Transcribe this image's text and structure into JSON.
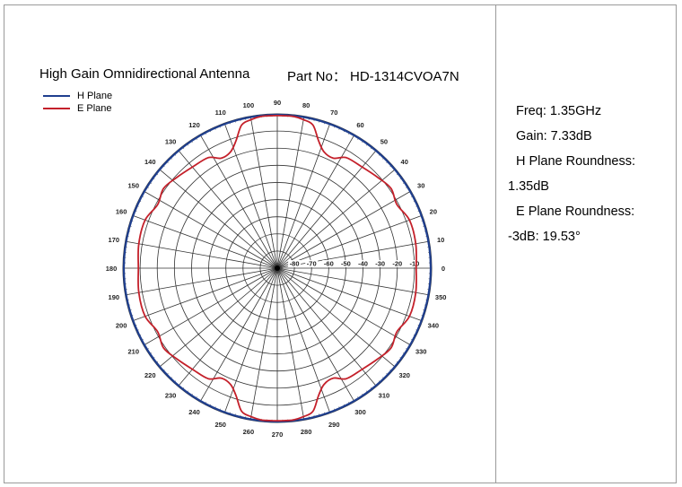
{
  "header": {
    "product": "High Gain Omnidirectional Antenna",
    "part_no": "Part No： HD-1314CVOA7N"
  },
  "specs": {
    "freq": "Freq: 1.35GHz",
    "gain": "Gain: 7.33dB",
    "h_roundness_label": "H Plane Roundness:",
    "h_roundness_value": "1.35dB",
    "e_roundness_label": "E Plane Roundness:",
    "e_roundness_value": "-3dB: 19.53°"
  },
  "colors": {
    "h_plane": "#1f3f8f",
    "e_plane": "#c4202a"
  },
  "chart_data": {
    "type": "polar",
    "legend": [
      "H Plane",
      "E Plane"
    ],
    "legend_position": "top-left",
    "angle_ticks": [
      0,
      10,
      20,
      30,
      40,
      50,
      60,
      70,
      80,
      90,
      100,
      110,
      120,
      130,
      140,
      150,
      160,
      170,
      180,
      190,
      200,
      210,
      220,
      230,
      240,
      250,
      260,
      270,
      280,
      290,
      300,
      310,
      320,
      330,
      340,
      350
    ],
    "radial_ticks": [
      -10,
      -20,
      -30,
      -40,
      -50,
      -60,
      -70,
      -80
    ],
    "radial_range_db": [
      -90,
      0
    ],
    "grid": true,
    "series": [
      {
        "name": "H Plane",
        "angle_deg": [
          0,
          90,
          180,
          270,
          360
        ],
        "gain_db": [
          0,
          0,
          0,
          0,
          0
        ]
      },
      {
        "name": "E Plane",
        "angle_deg": [
          0,
          10,
          20,
          28,
          35,
          42,
          50,
          58,
          63,
          68,
          72,
          76,
          80,
          84,
          88,
          90,
          92,
          96,
          100,
          104,
          108,
          112,
          117,
          122,
          130,
          138,
          145,
          152,
          160,
          170,
          180,
          190,
          200,
          208,
          215,
          222,
          230,
          238,
          243,
          248,
          252,
          256,
          260,
          264,
          268,
          270,
          272,
          276,
          280,
          284,
          288,
          292,
          297,
          302,
          310,
          318,
          325,
          332,
          340,
          350,
          360
        ],
        "gain_db": [
          -9,
          -8,
          -8,
          -11,
          -9,
          -11,
          -13,
          -14,
          -18,
          -17,
          -12,
          -4,
          -2,
          -1,
          -1,
          -1,
          -1,
          -1,
          -2,
          -4,
          -12,
          -17,
          -18,
          -14,
          -13,
          -11,
          -9,
          -11,
          -8,
          -8,
          -9,
          -8,
          -8,
          -11,
          -9,
          -11,
          -13,
          -14,
          -18,
          -17,
          -12,
          -4,
          -2,
          -1,
          -1,
          -1,
          -1,
          -1,
          -2,
          -4,
          -12,
          -17,
          -18,
          -14,
          -13,
          -11,
          -9,
          -11,
          -8,
          -8,
          -9
        ]
      }
    ]
  }
}
